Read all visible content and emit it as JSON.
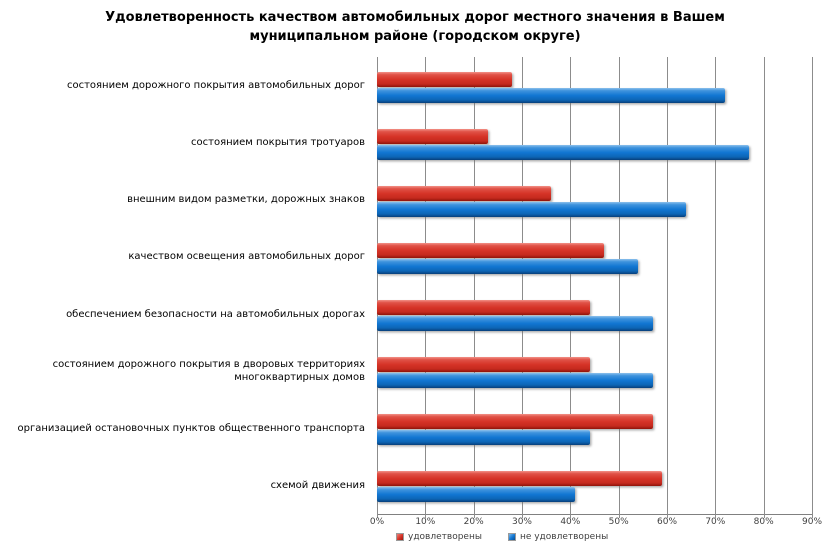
{
  "title": {
    "line1": "Удовлетворенность качеством автомобильных дорог местного значения  в Вашем",
    "line2": "муниципальном районе (городском округе)"
  },
  "chart_data": {
    "type": "bar",
    "orientation": "horizontal",
    "title": "Удовлетворенность качеством автомобильных дорог местного значения в Вашем муниципальном районе (городском округе)",
    "categories": [
      "состоянием дорожного покрытия автомобильных дорог",
      "состоянием покрытия тротуаров",
      "внешним видом разметки, дорожных знаков",
      "качеством освещения автомобильных дорог",
      "обеспечением  безопасности на автомобильных дорогах",
      "состоянием дорожного покрытия в дворовых территориях многоквартирных домов",
      "организацией остановочных пунктов общественного транспорта",
      "схемой движения"
    ],
    "series": [
      {
        "name": "удовлетворены",
        "color": "#d63327",
        "values": [
          28,
          23,
          36,
          47,
          44,
          44,
          57,
          59
        ]
      },
      {
        "name": "не удовлетворены",
        "color": "#1176d2",
        "values": [
          72,
          77,
          64,
          54,
          57,
          57,
          44,
          41
        ]
      }
    ],
    "value_unit": "%",
    "xlim": [
      0,
      90
    ],
    "tick_labels": [
      "0%",
      "10%",
      "20%",
      "30%",
      "40%",
      "50%",
      "60%",
      "70%",
      "80%",
      "90%"
    ],
    "grid": "vertical",
    "legend_position": "bottom",
    "gridline_color": "#8c8c8c"
  }
}
